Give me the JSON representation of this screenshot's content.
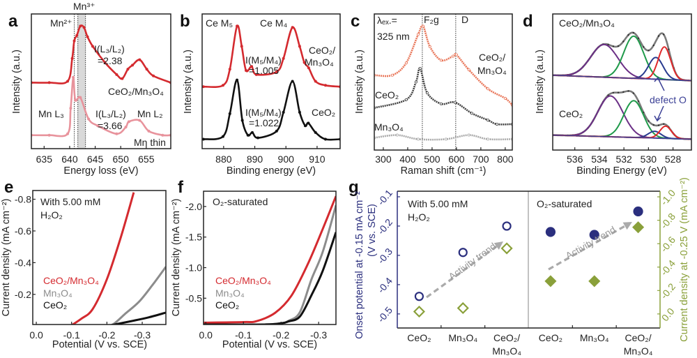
{
  "chart_data": [
    {
      "panel": "a",
      "type": "line",
      "xlabel": "Energy loss (eV)",
      "ylabel": "Intensity (a.u.)",
      "xlim": [
        632.5,
        659.8
      ],
      "ylim": [
        0,
        1
      ],
      "grid": false,
      "xticks": [
        635,
        640,
        645,
        650,
        655
      ],
      "xtick_labels": [
        "635",
        "640",
        "645",
        "650",
        "655"
      ],
      "vlines": [
        640.9,
        641.6,
        643.1
      ],
      "shaded_band": [
        641.6,
        643.1
      ],
      "series": [
        {
          "label": [
            "CeO₂/Mn₃O₄"
          ],
          "color": "#d42a2f",
          "x": [
            632.5,
            636,
            639.6,
            640.5,
            640.9,
            641.4,
            642.1,
            642.8,
            643.5,
            644.5,
            646.9,
            649.2,
            650.3,
            651.4,
            652.3,
            653.7,
            655.1,
            656.4,
            659.8
          ],
          "y": [
            0.49,
            0.49,
            0.5,
            0.67,
            0.8,
            0.84,
            0.91,
            0.9,
            0.83,
            0.76,
            0.64,
            0.55,
            0.52,
            0.59,
            0.62,
            0.66,
            0.59,
            0.54,
            0.49
          ]
        },
        {
          "label": [
            "Mn thin"
          ],
          "color": "#e8939c",
          "x": [
            632.5,
            636,
            639.6,
            640.2,
            640.7,
            641.1,
            642.1,
            643.7,
            645.5,
            649.2,
            651.0,
            651.6,
            653.7,
            655.5,
            658.2,
            659.8
          ],
          "y": [
            0.1,
            0.1,
            0.11,
            0.3,
            0.53,
            0.36,
            0.38,
            0.22,
            0.17,
            0.11,
            0.16,
            0.2,
            0.21,
            0.13,
            0.1,
            0.1
          ]
        }
      ],
      "annotations": [
        "Mn²⁺",
        "Mn³⁺",
        "I(L₃/L₂)",
        "=2.38",
        "Mn L₃",
        "I(L₃/L₂)",
        "=3.66",
        "Mn L₂"
      ]
    },
    {
      "panel": "b",
      "type": "line",
      "xlabel": "Binding energy (eV)",
      "ylabel": "Intensity (a.u.)",
      "xlim": [
        873.1,
        917.4
      ],
      "ylim": [
        0,
        1
      ],
      "grid": false,
      "xticks": [
        880,
        890,
        900,
        910
      ],
      "xtick_labels": [
        "880",
        "890",
        "900",
        "910"
      ],
      "series": [
        {
          "label": [
            "CeO₂/",
            "Mn₃O₄"
          ],
          "color": "#d42a2f",
          "x": [
            873.5,
            879.8,
            882.0,
            884.3,
            885.8,
            887.2,
            889.0,
            890.5,
            897.0,
            899.2,
            902.1,
            904.4,
            905.9,
            907.3,
            909.5,
            912.7,
            917.4
          ],
          "y": [
            0.46,
            0.47,
            0.59,
            0.91,
            0.76,
            0.58,
            0.61,
            0.55,
            0.57,
            0.67,
            0.9,
            0.76,
            0.64,
            0.6,
            0.5,
            0.47,
            0.46
          ]
        },
        {
          "label": [
            "CeO₂"
          ],
          "color": "#111111",
          "x": [
            873.5,
            879.8,
            882.0,
            884.3,
            886.0,
            887.8,
            889.2,
            891.0,
            897.0,
            899.2,
            902.1,
            904.4,
            906.2,
            907.2,
            909.5,
            912.7,
            917.4
          ],
          "y": [
            0.07,
            0.09,
            0.26,
            0.51,
            0.21,
            0.1,
            0.12,
            0.08,
            0.13,
            0.27,
            0.5,
            0.27,
            0.17,
            0.19,
            0.12,
            0.07,
            0.07
          ]
        }
      ],
      "annotations": [
        "Ce M₅",
        "Ce M₄",
        "I(M₅/M₄)",
        "=1.005",
        "I(M₅/M₄)",
        "=1.022"
      ]
    },
    {
      "panel": "c",
      "type": "line",
      "xlabel": "Raman shift (cm⁻¹)",
      "ylabel": "Intensity (a.u.)",
      "xlim": [
        263,
        829
      ],
      "ylim": [
        0,
        1
      ],
      "grid": false,
      "xticks": [
        300,
        400,
        500,
        600,
        700,
        800
      ],
      "xtick_labels": [
        "300",
        "400",
        "500",
        "600",
        "700",
        "800"
      ],
      "vlines": [
        460,
        597
      ],
      "series": [
        {
          "label": [
            "CeO₂/",
            "Mn₃O₄"
          ],
          "color": "#e9775a",
          "x": [
            263,
            337,
            394,
            443,
            463,
            491,
            537,
            586,
            600,
            651,
            729,
            800,
            829
          ],
          "y": [
            0.55,
            0.55,
            0.64,
            0.85,
            0.91,
            0.76,
            0.66,
            0.69,
            0.7,
            0.59,
            0.45,
            0.38,
            0.33
          ]
        },
        {
          "label": [
            "CeO₂"
          ],
          "color": "#444444",
          "x": [
            263,
            394,
            434,
            451,
            480,
            537,
            594,
            663,
            729,
            766,
            829
          ],
          "y": [
            0.31,
            0.37,
            0.5,
            0.6,
            0.42,
            0.34,
            0.35,
            0.27,
            0.22,
            0.19,
            0.19
          ]
        },
        {
          "label": [
            "Mn₃O₄"
          ],
          "color": "#aaaaaa",
          "x": [
            263,
            357,
            443,
            557,
            651,
            729,
            829
          ],
          "y": [
            0.09,
            0.11,
            0.08,
            0.08,
            0.11,
            0.08,
            0.08
          ]
        }
      ],
      "annotations": [
        "λₑₓ.=",
        "325 nm",
        "F₂g",
        "D"
      ]
    },
    {
      "panel": "d",
      "type": "line",
      "xlabel": "Binding Energy (eV)",
      "ylabel": "Intensity (a.u.)",
      "xlim": [
        537.8,
        526.5
      ],
      "ylim": [
        0,
        1
      ],
      "grid": false,
      "xticks": [
        536,
        534,
        532,
        530,
        528
      ],
      "xtick_labels": [
        "536",
        "534",
        "532",
        "530",
        "528"
      ],
      "envelope_color": "#7a7a7a",
      "fits": [
        {
          "label": [
            "CeO₂/Mn₃O₄"
          ],
          "baseline": [
            0.55,
            0.51
          ],
          "components": [
            {
              "center": 533.6,
              "height": 0.24,
              "fwhm": 2.6,
              "color": "#6b2f86"
            },
            {
              "center": 531.2,
              "height": 0.31,
              "fwhm": 1.9,
              "color": "#1f9a4a"
            },
            {
              "center": 529.4,
              "height": 0.16,
              "fwhm": 1.4,
              "color": "#283a8f"
            },
            {
              "center": 528.7,
              "height": 0.24,
              "fwhm": 1.2,
              "color": "#e0282a"
            }
          ]
        },
        {
          "label": [
            "CeO₂"
          ],
          "baseline": [
            0.11,
            0.08
          ],
          "components": [
            {
              "center": 533.1,
              "height": 0.3,
              "fwhm": 2.4,
              "color": "#6b2f86"
            },
            {
              "center": 531.2,
              "height": 0.27,
              "fwhm": 1.9,
              "color": "#1f9a4a"
            },
            {
              "center": 529.5,
              "height": 0.05,
              "fwhm": 1.2,
              "color": "#283a8f"
            },
            {
              "center": 528.6,
              "height": 0.09,
              "fwhm": 1.1,
              "color": "#e0282a"
            }
          ]
        }
      ],
      "annotations": [
        "defect O"
      ],
      "annotation_color": "#3a3f95"
    },
    {
      "panel": "e",
      "type": "line",
      "xlabel": "Potential (V vs. SCE)",
      "ylabel": "Current density (mA cm⁻²)",
      "xlim": [
        0.01,
        -0.367
      ],
      "ylim": [
        -0.01,
        -0.855
      ],
      "grid": false,
      "xticks": [
        0.0,
        -0.1,
        -0.2,
        -0.3
      ],
      "xtick_labels": [
        "0.0",
        "-0.1",
        "-0.2",
        "-0.3"
      ],
      "yticks": [
        -0.2,
        -0.4,
        -0.6,
        -0.8
      ],
      "ytick_labels": [
        "-0.2",
        "-0.4",
        "-0.6",
        "-0.8"
      ],
      "series": [
        {
          "label": [
            "CeO₂/Mn₃O₄"
          ],
          "color": "#d42a2f",
          "x": [
            -0.1,
            -0.128,
            -0.16,
            -0.2,
            -0.239,
            -0.276
          ],
          "y": [
            -0.005,
            -0.047,
            -0.108,
            -0.296,
            -0.558,
            -0.843
          ]
        },
        {
          "label": [
            "Mn₃O₄"
          ],
          "color": "#8c8c8c",
          "x": [
            -0.2,
            -0.22,
            -0.252,
            -0.292,
            -0.331,
            -0.367
          ],
          "y": [
            0,
            -0.015,
            -0.078,
            -0.156,
            -0.265,
            -0.374
          ]
        },
        {
          "label": [
            "CeO₂"
          ],
          "color": "#111111",
          "x": [
            -0.2,
            -0.266,
            -0.318,
            -0.367
          ],
          "y": [
            0,
            -0.03,
            -0.055,
            -0.085
          ]
        }
      ],
      "legend": "left",
      "annotations": [
        "With 5.00 mM",
        "H₂O₂"
      ]
    },
    {
      "panel": "f",
      "type": "line",
      "xlabel": "Potential (V vs. SCE)",
      "ylabel": "Current density (mA cm⁻²)",
      "xlim": [
        0.006,
        -0.346
      ],
      "ylim": [
        -0.07,
        -2.25
      ],
      "grid": false,
      "xticks": [
        0.0,
        -0.1,
        -0.2,
        -0.3
      ],
      "xtick_labels": [
        "0.0",
        "-0.1",
        "-0.2",
        "-0.3"
      ],
      "yticks": [
        -0.5,
        -1.0,
        -1.5,
        -2.0
      ],
      "ytick_labels": [
        "-0.5",
        "-1.0",
        "-1.5",
        "-2.0"
      ],
      "series": [
        {
          "label": [
            "CeO₂/Mn₃O₄"
          ],
          "color": "#d42a2f",
          "x": [
            0.006,
            -0.1,
            -0.135,
            -0.184,
            -0.228,
            -0.272,
            -0.31,
            -0.346
          ],
          "y": [
            -0.1,
            -0.11,
            -0.125,
            -0.26,
            -0.545,
            -1.07,
            -1.62,
            -2.17
          ]
        },
        {
          "label": [
            "Mn₃O₄"
          ],
          "color": "#8c8c8c",
          "x": [
            0.006,
            -0.15,
            -0.2,
            -0.22,
            -0.25,
            -0.281,
            -0.311,
            -0.346
          ],
          "y": [
            -0.07,
            -0.07,
            -0.09,
            -0.13,
            -0.27,
            -0.81,
            -1.26,
            -2.02
          ]
        },
        {
          "label": [
            "CeO₂"
          ],
          "color": "#111111",
          "x": [
            0.006,
            -0.15,
            -0.2,
            -0.22,
            -0.25,
            -0.281,
            -0.311,
            -0.346
          ],
          "y": [
            -0.07,
            -0.07,
            -0.09,
            -0.12,
            -0.2,
            -0.55,
            -0.95,
            -1.58
          ]
        }
      ],
      "legend": "left",
      "annotations": [
        "O₂-saturated"
      ]
    },
    {
      "panel": "g",
      "type": "scatter",
      "ylabel_left": [
        "Onset potential at -0.15 mA cm⁻²",
        "(V vs. SCE)"
      ],
      "ylabel_right": "Current density at -0.25 V (mA cm⁻²)",
      "ylim_left": [
        -0.548,
        -0.081
      ],
      "ylim_right": [
        0.12,
        -1.048
      ],
      "yticks_left": [
        -0.1,
        -0.2,
        -0.3,
        -0.4,
        -0.5
      ],
      "ytick_labels_left": [
        "-0.1",
        "-0.2",
        "-0.3",
        "-0.4",
        "-0.5"
      ],
      "yticks_right": [
        -1.0,
        -0.8,
        -0.6,
        -0.4,
        -0.2,
        0.0
      ],
      "ytick_labels_right": [
        "-1.0",
        "-0.8",
        "-0.6",
        "-0.4",
        "-0.2",
        "0.0"
      ],
      "left_color": "#2b2f7e",
      "right_color": "#8aa03a",
      "groups": [
        {
          "title": [
            "With 5.00 mM",
            "H₂O₂"
          ],
          "filled": false,
          "categories": [
            [
              "CeO₂"
            ],
            [
              "Mn₃O₄"
            ],
            [
              "CeO₂/",
              "Mn₃O₄"
            ]
          ],
          "onset_potential": [
            -0.44,
            -0.29,
            -0.2
          ],
          "current_density": [
            -0.02,
            -0.05,
            -0.56
          ],
          "trend_label": "Activity trend"
        },
        {
          "title": [
            "O₂-saturated"
          ],
          "filled": true,
          "categories": [
            [
              "CeO₂"
            ],
            [
              "Mn₃O₄"
            ],
            [
              "CeO₂/",
              "Mn₃O₄"
            ]
          ],
          "onset_potential": [
            -0.22,
            -0.23,
            -0.15
          ],
          "current_density": [
            -0.28,
            -0.28,
            -0.74
          ],
          "trend_label": "Activity trend"
        }
      ]
    }
  ]
}
